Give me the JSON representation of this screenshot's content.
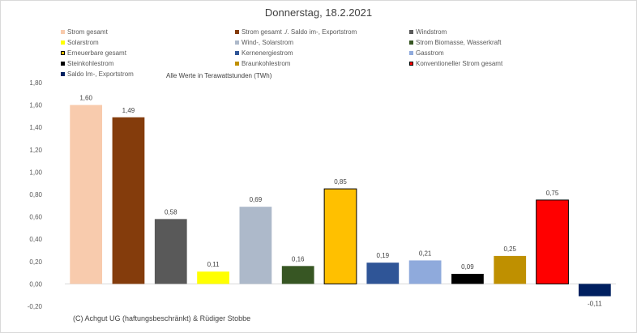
{
  "chart_data": {
    "type": "bar",
    "title": "Donnerstag, 18.2.2021",
    "note": "Alle Werte in Terawattstunden (TWh)",
    "credit": "(C) Achgut UG (haftungsbeschränkt) & Rüdiger Stobbe",
    "ylim": [
      -0.2,
      1.8
    ],
    "ytick_labels": [
      "-0,20",
      "0,00",
      "0,20",
      "0,40",
      "0,60",
      "0,80",
      "1,00",
      "1,20",
      "1,40",
      "1,60",
      "1,80"
    ],
    "grid": false,
    "legend_position": "top",
    "series": [
      {
        "name": "Strom gesamt",
        "value": 1.6,
        "label": "1,60",
        "color": "#f8cbad"
      },
      {
        "name": "Strom gesamt ./. Saldo im-, Exportstrom",
        "value": 1.49,
        "label": "1,49",
        "color": "#843c0c"
      },
      {
        "name": "Windstrom",
        "value": 0.58,
        "label": "0,58",
        "color": "#595959"
      },
      {
        "name": "Solarstrom",
        "value": 0.11,
        "label": "0,11",
        "color": "#ffff00"
      },
      {
        "name": "Wind-, Solarstrom",
        "value": 0.69,
        "label": "0,69",
        "color": "#adb9ca"
      },
      {
        "name": "Strom Biomasse, Wasserkraft",
        "value": 0.16,
        "label": "0,16",
        "color": "#375623"
      },
      {
        "name": "Erneuerbare gesamt",
        "value": 0.85,
        "label": "0,85",
        "color": "#ffc000",
        "outline": "#000000"
      },
      {
        "name": "Kernenergiestrom",
        "value": 0.19,
        "label": "0,19",
        "color": "#2f5597"
      },
      {
        "name": "Gasstrom",
        "value": 0.21,
        "label": "0,21",
        "color": "#8faadc"
      },
      {
        "name": "Steinkohlestrom",
        "value": 0.09,
        "label": "0,09",
        "color": "#000000"
      },
      {
        "name": "Braunkohlestrom",
        "value": 0.25,
        "label": "0,25",
        "color": "#bf9000"
      },
      {
        "name": "Konventioneller Strom gesamt",
        "value": 0.75,
        "label": "0,75",
        "color": "#ff0000",
        "outline": "#000000"
      },
      {
        "name": "Saldo Im-, Exportstrom",
        "value": -0.11,
        "label": "-0,11",
        "color": "#002060"
      }
    ]
  }
}
